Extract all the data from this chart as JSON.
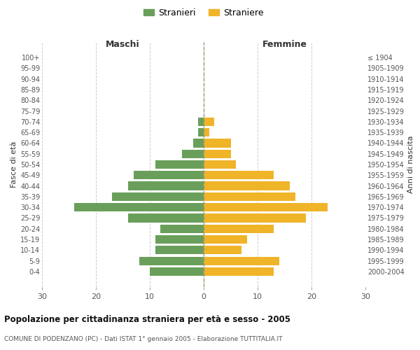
{
  "age_groups": [
    "0-4",
    "5-9",
    "10-14",
    "15-19",
    "20-24",
    "25-29",
    "30-34",
    "35-39",
    "40-44",
    "45-49",
    "50-54",
    "55-59",
    "60-64",
    "65-69",
    "70-74",
    "75-79",
    "80-84",
    "85-89",
    "90-94",
    "95-99",
    "100+"
  ],
  "birth_years": [
    "2000-2004",
    "1995-1999",
    "1990-1994",
    "1985-1989",
    "1980-1984",
    "1975-1979",
    "1970-1974",
    "1965-1969",
    "1960-1964",
    "1955-1959",
    "1950-1954",
    "1945-1949",
    "1940-1944",
    "1935-1939",
    "1930-1934",
    "1925-1929",
    "1920-1924",
    "1915-1919",
    "1910-1914",
    "1905-1909",
    "≤ 1904"
  ],
  "maschi": [
    10,
    12,
    9,
    9,
    8,
    14,
    24,
    17,
    14,
    13,
    9,
    4,
    2,
    1,
    1,
    0,
    0,
    0,
    0,
    0,
    0
  ],
  "femmine": [
    13,
    14,
    7,
    8,
    13,
    19,
    23,
    17,
    16,
    13,
    6,
    5,
    5,
    1,
    2,
    0,
    0,
    0,
    0,
    0,
    0
  ],
  "maschi_color": "#6a9f5b",
  "femmine_color": "#f0b429",
  "title": "Popolazione per cittadinanza straniera per età e sesso - 2005",
  "subtitle": "COMUNE DI PODENZANO (PC) - Dati ISTAT 1° gennaio 2005 - Elaborazione TUTTITALIA.IT",
  "xlabel_left": "Maschi",
  "xlabel_right": "Femmine",
  "ylabel_left": "Fasce di età",
  "ylabel_right": "Anni di nascita",
  "legend_maschi": "Stranieri",
  "legend_femmine": "Straniere",
  "xlim": 30,
  "background_color": "#ffffff",
  "grid_color": "#cccccc"
}
